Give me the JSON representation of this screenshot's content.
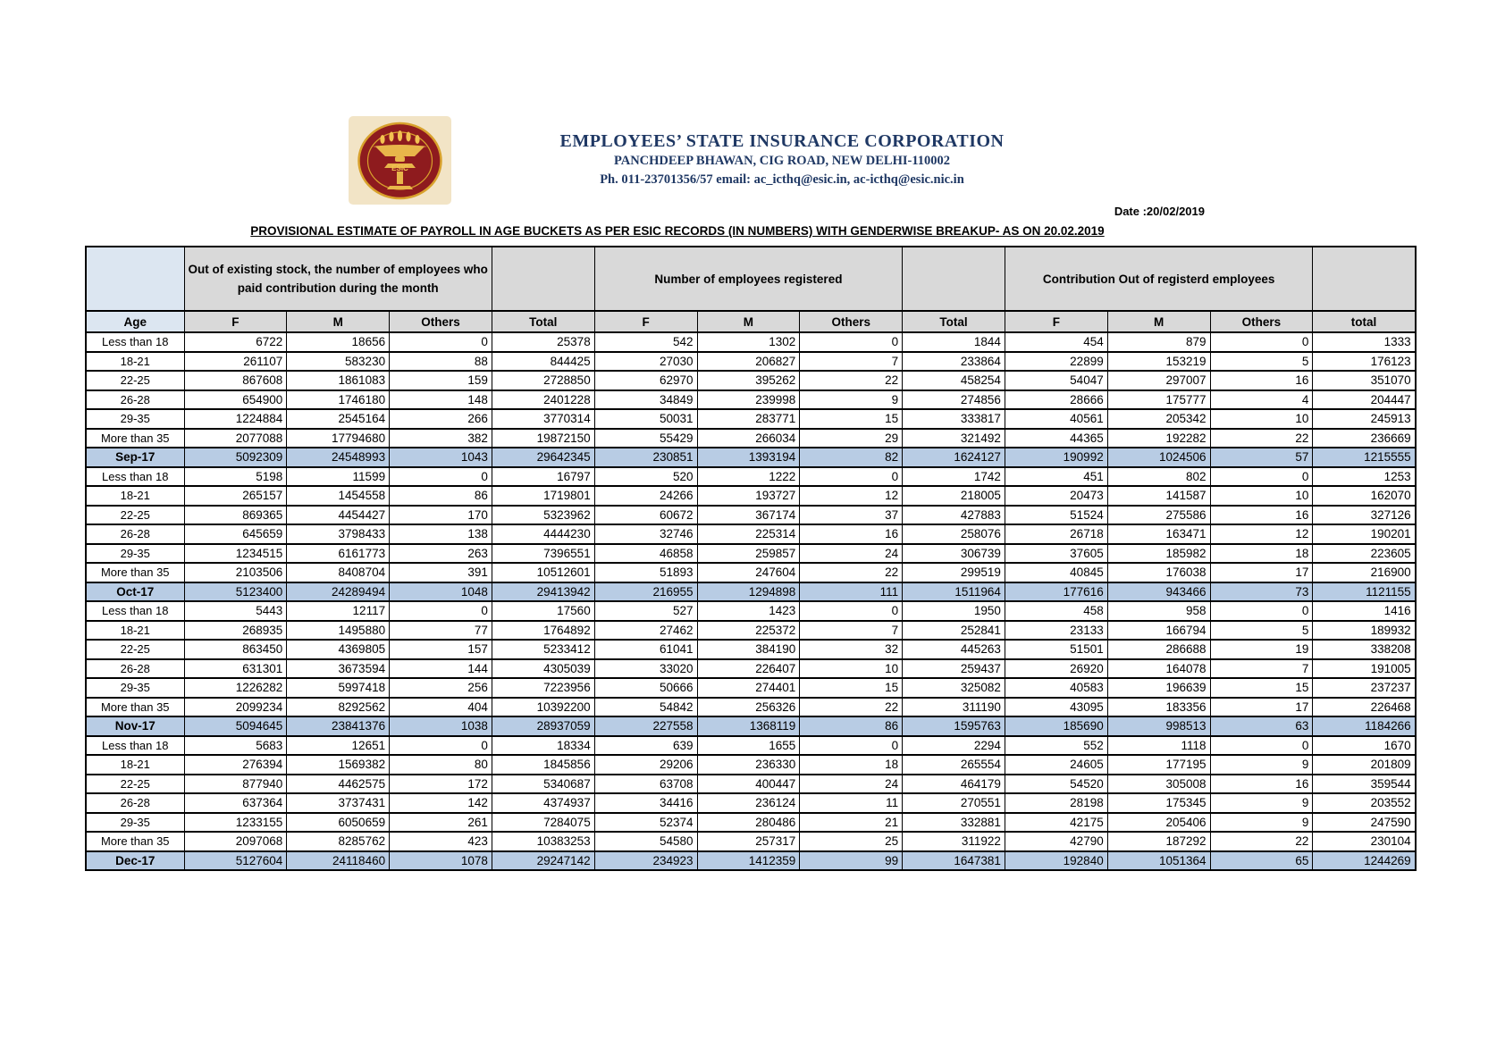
{
  "header": {
    "logo_text": "ESIC",
    "org_name": "EMPLOYEES’ STATE INSURANCE CORPORATION",
    "address": "PANCHDEEP BHAWAN, CIG ROAD, NEW DELHI-110002",
    "contact": "Ph. 011-23701356/57 email: ac_icthq@esic.in, ac-icthq@esic.nic.in"
  },
  "meta": {
    "date_label": "Date :20/02/2019",
    "title": "PROVISIONAL ESTIMATE OF PAYROLL IN AGE BUCKETS AS PER ESIC RECORDS (IN NUMBERS) WITH GENDERWISE BREAKUP- AS ON 20.02.2019"
  },
  "colors": {
    "header_gray": "#d9d9d9",
    "age_header_blue": "#dce6f1",
    "summary_row_blue": "#b8cce4",
    "heading_navy": "#1f3864",
    "logo_maroon": "#8e1b1e",
    "logo_gold": "#d8a12c",
    "logo_tan": "#f2e4c6"
  },
  "table": {
    "group_labels": [
      "Out of existing stock, the number of employees who paid contribution during the month",
      "Number of employees registered",
      "Contribution  Out of  registerd employees"
    ],
    "column_headers": [
      "Age",
      "F",
      "M",
      "Others",
      "Total",
      "F",
      "M",
      "Others",
      "Total",
      "F",
      "M",
      "Others",
      "total"
    ],
    "blocks": [
      {
        "month": "Sep-17",
        "rows": [
          [
            "Less than 18",
            6722,
            18656,
            0,
            25378,
            542,
            1302,
            0,
            1844,
            454,
            879,
            0,
            1333
          ],
          [
            "18-21",
            261107,
            583230,
            88,
            844425,
            27030,
            206827,
            7,
            233864,
            22899,
            153219,
            5,
            176123
          ],
          [
            "22-25",
            867608,
            1861083,
            159,
            2728850,
            62970,
            395262,
            22,
            458254,
            54047,
            297007,
            16,
            351070
          ],
          [
            "26-28",
            654900,
            1746180,
            148,
            2401228,
            34849,
            239998,
            9,
            274856,
            28666,
            175777,
            4,
            204447
          ],
          [
            "29-35",
            1224884,
            2545164,
            266,
            3770314,
            50031,
            283771,
            15,
            333817,
            40561,
            205342,
            10,
            245913
          ],
          [
            "More than 35",
            2077088,
            17794680,
            382,
            19872150,
            55429,
            266034,
            29,
            321492,
            44365,
            192282,
            22,
            236669
          ]
        ],
        "summary_values": [
          5092309,
          24548993,
          1043,
          29642345,
          230851,
          1393194,
          82,
          1624127,
          190992,
          1024506,
          57,
          1215555
        ]
      },
      {
        "month": "Oct-17",
        "rows": [
          [
            "Less than 18",
            5198,
            11599,
            0,
            16797,
            520,
            1222,
            0,
            1742,
            451,
            802,
            0,
            1253
          ],
          [
            "18-21",
            265157,
            1454558,
            86,
            1719801,
            24266,
            193727,
            12,
            218005,
            20473,
            141587,
            10,
            162070
          ],
          [
            "22-25",
            869365,
            4454427,
            170,
            5323962,
            60672,
            367174,
            37,
            427883,
            51524,
            275586,
            16,
            327126
          ],
          [
            "26-28",
            645659,
            3798433,
            138,
            4444230,
            32746,
            225314,
            16,
            258076,
            26718,
            163471,
            12,
            190201
          ],
          [
            "29-35",
            1234515,
            6161773,
            263,
            7396551,
            46858,
            259857,
            24,
            306739,
            37605,
            185982,
            18,
            223605
          ],
          [
            "More than 35",
            2103506,
            8408704,
            391,
            10512601,
            51893,
            247604,
            22,
            299519,
            40845,
            176038,
            17,
            216900
          ]
        ],
        "summary_values": [
          5123400,
          24289494,
          1048,
          29413942,
          216955,
          1294898,
          111,
          1511964,
          177616,
          943466,
          73,
          1121155
        ]
      },
      {
        "month": "Nov-17",
        "rows": [
          [
            "Less than 18",
            5443,
            12117,
            0,
            17560,
            527,
            1423,
            0,
            1950,
            458,
            958,
            0,
            1416
          ],
          [
            "18-21",
            268935,
            1495880,
            77,
            1764892,
            27462,
            225372,
            7,
            252841,
            23133,
            166794,
            5,
            189932
          ],
          [
            "22-25",
            863450,
            4369805,
            157,
            5233412,
            61041,
            384190,
            32,
            445263,
            51501,
            286688,
            19,
            338208
          ],
          [
            "26-28",
            631301,
            3673594,
            144,
            4305039,
            33020,
            226407,
            10,
            259437,
            26920,
            164078,
            7,
            191005
          ],
          [
            "29-35",
            1226282,
            5997418,
            256,
            7223956,
            50666,
            274401,
            15,
            325082,
            40583,
            196639,
            15,
            237237
          ],
          [
            "More than 35",
            2099234,
            8292562,
            404,
            10392200,
            54842,
            256326,
            22,
            311190,
            43095,
            183356,
            17,
            226468
          ]
        ],
        "summary_values": [
          5094645,
          23841376,
          1038,
          28937059,
          227558,
          1368119,
          86,
          1595763,
          185690,
          998513,
          63,
          1184266
        ]
      },
      {
        "month": "Dec-17",
        "rows": [
          [
            "Less than 18",
            5683,
            12651,
            0,
            18334,
            639,
            1655,
            0,
            2294,
            552,
            1118,
            0,
            1670
          ],
          [
            "18-21",
            276394,
            1569382,
            80,
            1845856,
            29206,
            236330,
            18,
            265554,
            24605,
            177195,
            9,
            201809
          ],
          [
            "22-25",
            877940,
            4462575,
            172,
            5340687,
            63708,
            400447,
            24,
            464179,
            54520,
            305008,
            16,
            359544
          ],
          [
            "26-28",
            637364,
            3737431,
            142,
            4374937,
            34416,
            236124,
            11,
            270551,
            28198,
            175345,
            9,
            203552
          ],
          [
            "29-35",
            1233155,
            6050659,
            261,
            7284075,
            52374,
            280486,
            21,
            332881,
            42175,
            205406,
            9,
            247590
          ],
          [
            "More than 35",
            2097068,
            8285762,
            423,
            10383253,
            54580,
            257317,
            25,
            311922,
            42790,
            187292,
            22,
            230104
          ]
        ],
        "summary_values": [
          5127604,
          24118460,
          1078,
          29247142,
          234923,
          1412359,
          99,
          1647381,
          192840,
          1051364,
          65,
          1244269
        ]
      }
    ]
  }
}
